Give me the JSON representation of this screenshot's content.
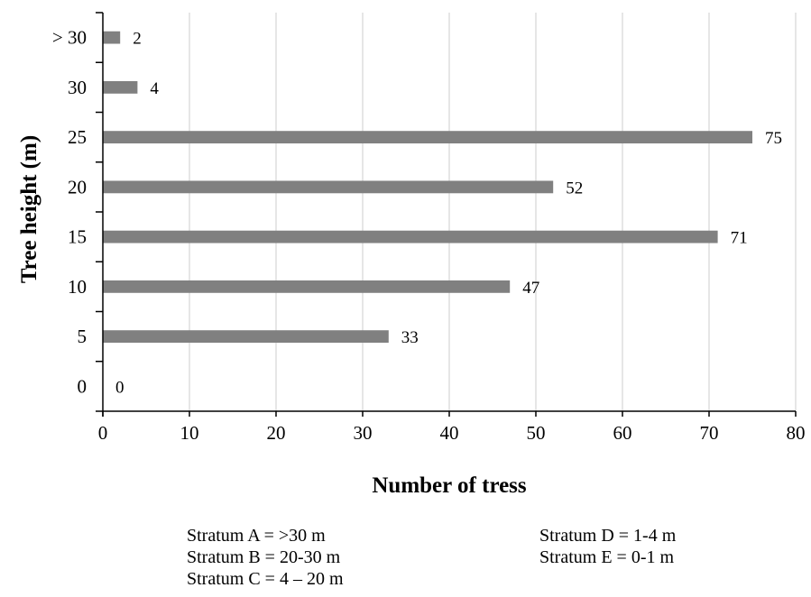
{
  "chart_data": {
    "type": "bar",
    "orientation": "horizontal",
    "categories": [
      "0",
      "5",
      "10",
      "15",
      "20",
      "25",
      "30",
      "> 30"
    ],
    "values": [
      0,
      33,
      47,
      71,
      52,
      75,
      4,
      2
    ],
    "data_labels": [
      "0",
      "33",
      "47",
      "71",
      "52",
      "75",
      "4",
      "2"
    ],
    "xlabel": "Number of tress",
    "ylabel": "Tree height  (m)",
    "xlim": [
      0,
      80
    ],
    "xticks": [
      0,
      10,
      20,
      30,
      40,
      50,
      60,
      70,
      80
    ],
    "grid": "vertical",
    "bar_color": "#808080",
    "grid_color": "#d9d9d9"
  },
  "notes": {
    "column_1": [
      "Stratum A = >30 m",
      "Stratum B = 20-30 m",
      "Stratum C = 4 – 20 m"
    ],
    "column_2": [
      "Stratum D = 1-4 m",
      "Stratum E = 0-1 m"
    ]
  }
}
